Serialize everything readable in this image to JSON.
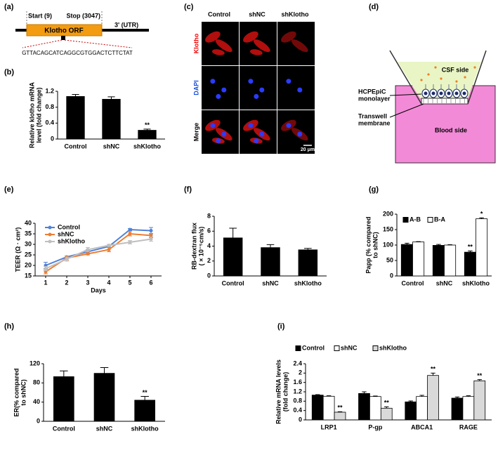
{
  "figure": {
    "panel_labels": [
      "(a)",
      "(b)",
      "(c)",
      "(d)",
      "(e)",
      "(f)",
      "(g)",
      "(h)",
      "(i)"
    ],
    "scheme": {
      "start": "Start (9)",
      "stop": "Stop (3047)",
      "orf": "Klotho ORF",
      "utr": "3' (UTR)",
      "sequence": "GTTACAGCATCAGGCGTGGACTCTTCTAT"
    },
    "images": {
      "columns": [
        "Control",
        "shNC",
        "shKlotho"
      ],
      "rows": [
        "Klotho",
        "DAPI",
        "Merge"
      ],
      "scale_bar": "20 μm"
    },
    "transwell": {
      "top": "CSF side",
      "monolayer": [
        "HCPEpiC",
        "monolayer"
      ],
      "membrane": [
        "Transwell",
        "membrane"
      ],
      "bottom": "Blood side"
    }
  },
  "chart_data": [
    {
      "type": "bar",
      "y_label": [
        "Relative klotho mRNA",
        "level (fold change)"
      ],
      "categories": [
        "Control",
        "shNC",
        "shKlotho"
      ],
      "values": [
        1.07,
        1.0,
        0.22
      ],
      "errors": [
        0.05,
        0.06,
        0.03
      ],
      "significance": [
        null,
        null,
        "**"
      ],
      "color": "#000000",
      "ylim": [
        0,
        1.2
      ],
      "yticks": [
        0,
        0.4,
        0.8,
        1.2
      ]
    },
    {
      "type": "line",
      "x_label": "Days",
      "y_label": [
        "TEER (Ω · cm²)"
      ],
      "x": [
        1,
        2,
        3,
        4,
        5,
        6
      ],
      "series": [
        {
          "name": "Control",
          "color": "#4f81d9",
          "values": [
            20,
            24,
            26.5,
            29,
            37,
            36.5
          ],
          "errors": [
            1.5,
            0.5,
            1,
            0.5,
            0.5,
            1.5
          ]
        },
        {
          "name": "shNC",
          "color": "#ed7d31",
          "values": [
            17,
            23.5,
            25.5,
            27.5,
            35,
            34.2
          ],
          "errors": [
            1,
            1,
            0.5,
            1,
            1,
            1
          ]
        },
        {
          "name": "shKlotho",
          "color": "#bfbfbf",
          "values": [
            18.5,
            23,
            27.5,
            29.5,
            31,
            32.5
          ],
          "errors": [
            1,
            1,
            1,
            0.5,
            0.8,
            1
          ]
        }
      ],
      "xlim": [
        0.5,
        6.5
      ],
      "xticks": [
        1,
        2,
        3,
        4,
        5,
        6
      ],
      "ylim": [
        15,
        40
      ],
      "yticks": [
        15,
        20,
        25,
        30,
        35,
        40
      ],
      "legend": "upper left"
    },
    {
      "type": "bar",
      "y_label": [
        "RB-dextran flux",
        "( × 10⁻⁵cm/s)"
      ],
      "categories": [
        "Control",
        "shNC",
        "shKlotho"
      ],
      "values": [
        5.1,
        3.8,
        3.5
      ],
      "errors": [
        1.3,
        0.4,
        0.2
      ],
      "color": "#000000",
      "ylim": [
        0,
        8
      ],
      "yticks": [
        0,
        2,
        4,
        6,
        8
      ]
    },
    {
      "type": "bar",
      "y_label": [
        "Papp (% compared",
        "to shNC)"
      ],
      "categories": [
        "Control",
        "shNC",
        "shKlotho"
      ],
      "series": [
        {
          "name": "A-B",
          "color": "#000000",
          "values": [
            102,
            99,
            77
          ],
          "errors": [
            4,
            3,
            4
          ],
          "significance": [
            null,
            null,
            "**"
          ]
        },
        {
          "name": "B-A",
          "color": "#ffffff",
          "values": [
            110,
            100,
            185
          ],
          "errors": [
            1,
            1,
            3
          ],
          "significance": [
            null,
            null,
            "*"
          ]
        }
      ],
      "ylim": [
        0,
        200
      ],
      "yticks": [
        0,
        50,
        100,
        150,
        200
      ],
      "legend": "upper left"
    },
    {
      "type": "bar",
      "y_label": [
        "ER(% compared",
        "to shNC)"
      ],
      "categories": [
        "Control",
        "shNC",
        "shKlotho"
      ],
      "values": [
        93,
        100,
        44
      ],
      "errors": [
        12,
        12,
        8
      ],
      "significance": [
        null,
        null,
        "**"
      ],
      "color": "#000000",
      "ylim": [
        0,
        120
      ],
      "yticks": [
        0,
        40,
        80,
        120
      ]
    },
    {
      "type": "bar",
      "y_label": [
        "Relative mRNA levels",
        "(fold change)"
      ],
      "categories": [
        "LRP1",
        "P-gp",
        "ABCA1",
        "RAGE"
      ],
      "series": [
        {
          "name": "Control",
          "color": "#000000",
          "values": [
            1.06,
            1.13,
            0.77,
            0.93
          ],
          "errors": [
            0.02,
            0.07,
            0.04,
            0.05
          ]
        },
        {
          "name": "shNC",
          "color": "#ffffff",
          "values": [
            1.01,
            1.0,
            1.0,
            1.0
          ],
          "errors": [
            0.02,
            0.02,
            0.05,
            0.03
          ]
        },
        {
          "name": "shKlotho",
          "color": "#d9d9d9",
          "values": [
            0.33,
            0.5,
            1.9,
            1.67
          ],
          "errors": [
            0.02,
            0.06,
            0.1,
            0.05
          ],
          "significance": [
            "**",
            "**",
            "**",
            "**"
          ]
        }
      ],
      "ylim": [
        0,
        2.4
      ],
      "yticks": [
        0,
        0.4,
        0.8,
        1.2,
        1.6,
        2,
        2.4
      ],
      "legend": "top"
    }
  ]
}
